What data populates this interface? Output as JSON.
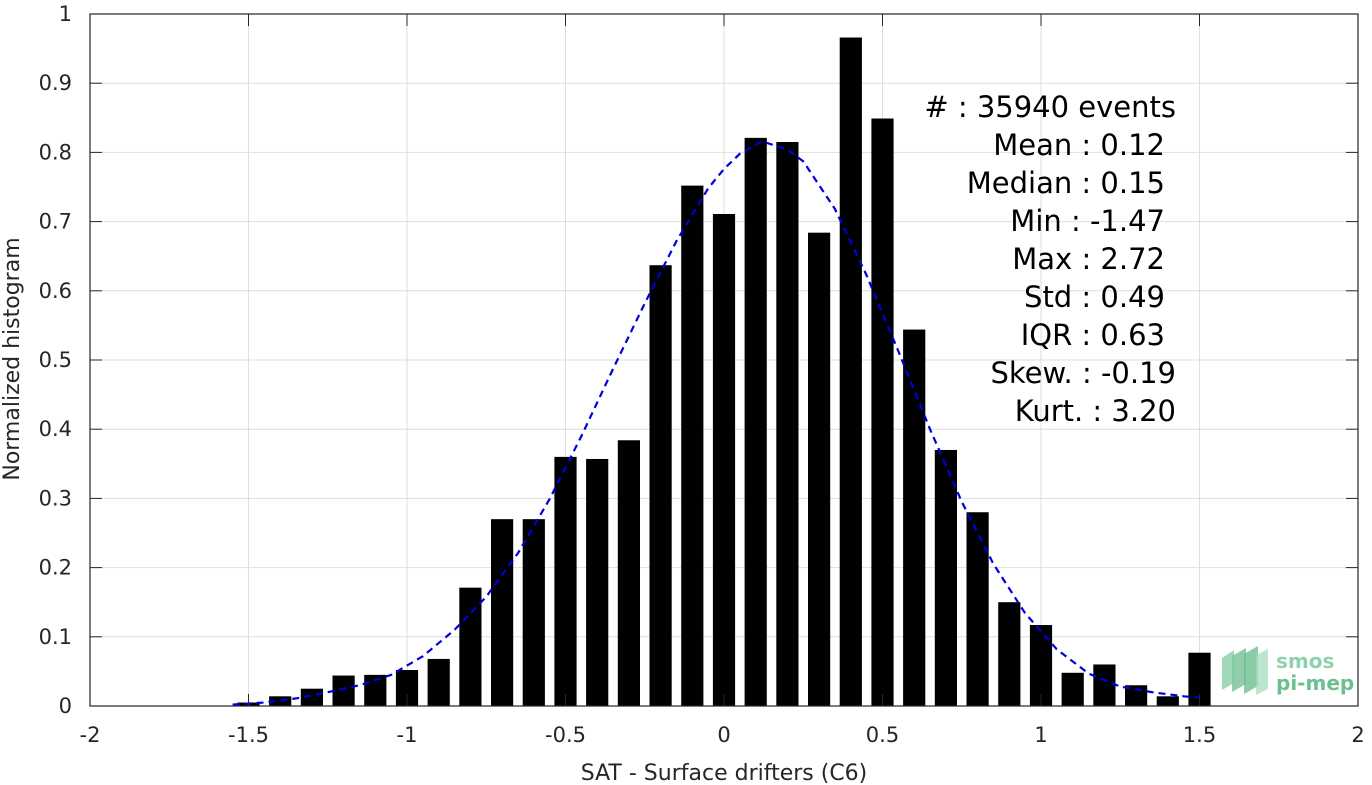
{
  "chart_data": {
    "type": "bar",
    "xlabel": "SAT - Surface drifters (C6)",
    "ylabel": "Normalized histogram",
    "xlim": [
      -2,
      2
    ],
    "ylim": [
      0,
      1
    ],
    "grid": true,
    "xticks": [
      -2,
      -1.5,
      -1,
      -0.5,
      0,
      0.5,
      1,
      1.5,
      2
    ],
    "xtick_labels": [
      "-2",
      "-1.5",
      "-1",
      "-0.5",
      "0",
      "0.5",
      "1",
      "1.5",
      "2"
    ],
    "yticks": [
      0,
      0.1,
      0.2,
      0.3,
      0.4,
      0.5,
      0.6,
      0.7,
      0.8,
      0.9,
      1
    ],
    "ytick_labels": [
      "0",
      "0.1",
      "0.2",
      "0.3",
      "0.4",
      "0.5",
      "0.6",
      "0.7",
      "0.8",
      "0.9",
      "1"
    ],
    "bar_color": "#000000",
    "bar_width": 0.07,
    "bars": {
      "x": [
        -1.5,
        -1.4,
        -1.3,
        -1.2,
        -1.1,
        -1.0,
        -0.9,
        -0.8,
        -0.7,
        -0.6,
        -0.5,
        -0.4,
        -0.3,
        -0.2,
        -0.1,
        0.0,
        0.1,
        0.2,
        0.3,
        0.4,
        0.5,
        0.6,
        0.7,
        0.8,
        0.9,
        1.0,
        1.1,
        1.2,
        1.3,
        1.4,
        1.5
      ],
      "values": [
        0.005,
        0.014,
        0.025,
        0.044,
        0.045,
        0.052,
        0.068,
        0.171,
        0.27,
        0.27,
        0.36,
        0.357,
        0.384,
        0.637,
        0.752,
        0.711,
        0.821,
        0.815,
        0.684,
        0.966,
        0.849,
        0.544,
        0.37,
        0.28,
        0.15,
        0.117,
        0.048,
        0.06,
        0.03,
        0.014,
        0.077
      ]
    },
    "fit": {
      "name": "",
      "color": "#0000dd",
      "style": "dashed",
      "x": [
        -1.55,
        -1.45,
        -1.35,
        -1.25,
        -1.15,
        -1.05,
        -0.95,
        -0.85,
        -0.75,
        -0.65,
        -0.55,
        -0.45,
        -0.35,
        -0.25,
        -0.15,
        -0.05,
        0.0,
        0.05,
        0.12,
        0.2,
        0.25,
        0.35,
        0.45,
        0.55,
        0.65,
        0.75,
        0.85,
        0.95,
        1.05,
        1.15,
        1.25,
        1.35,
        1.45,
        1.5
      ],
      "y": [
        0.002,
        0.005,
        0.011,
        0.02,
        0.03,
        0.045,
        0.072,
        0.11,
        0.158,
        0.221,
        0.299,
        0.39,
        0.487,
        0.582,
        0.672,
        0.748,
        0.776,
        0.798,
        0.816,
        0.804,
        0.787,
        0.718,
        0.622,
        0.513,
        0.4,
        0.295,
        0.205,
        0.134,
        0.082,
        0.047,
        0.028,
        0.02,
        0.014,
        0.012
      ]
    },
    "stats": [
      "#  : 35940 events",
      "Mean : 0.12",
      "Median : 0.15",
      "Min : -1.47",
      "Max : 2.72",
      "Std : 0.49",
      "IQR : 0.63",
      "Skew. : -0.19",
      "Kurt. : 3.20"
    ]
  },
  "logo": {
    "line1": "smos",
    "line2": "pi-mep",
    "color": "#6cbf8f"
  }
}
